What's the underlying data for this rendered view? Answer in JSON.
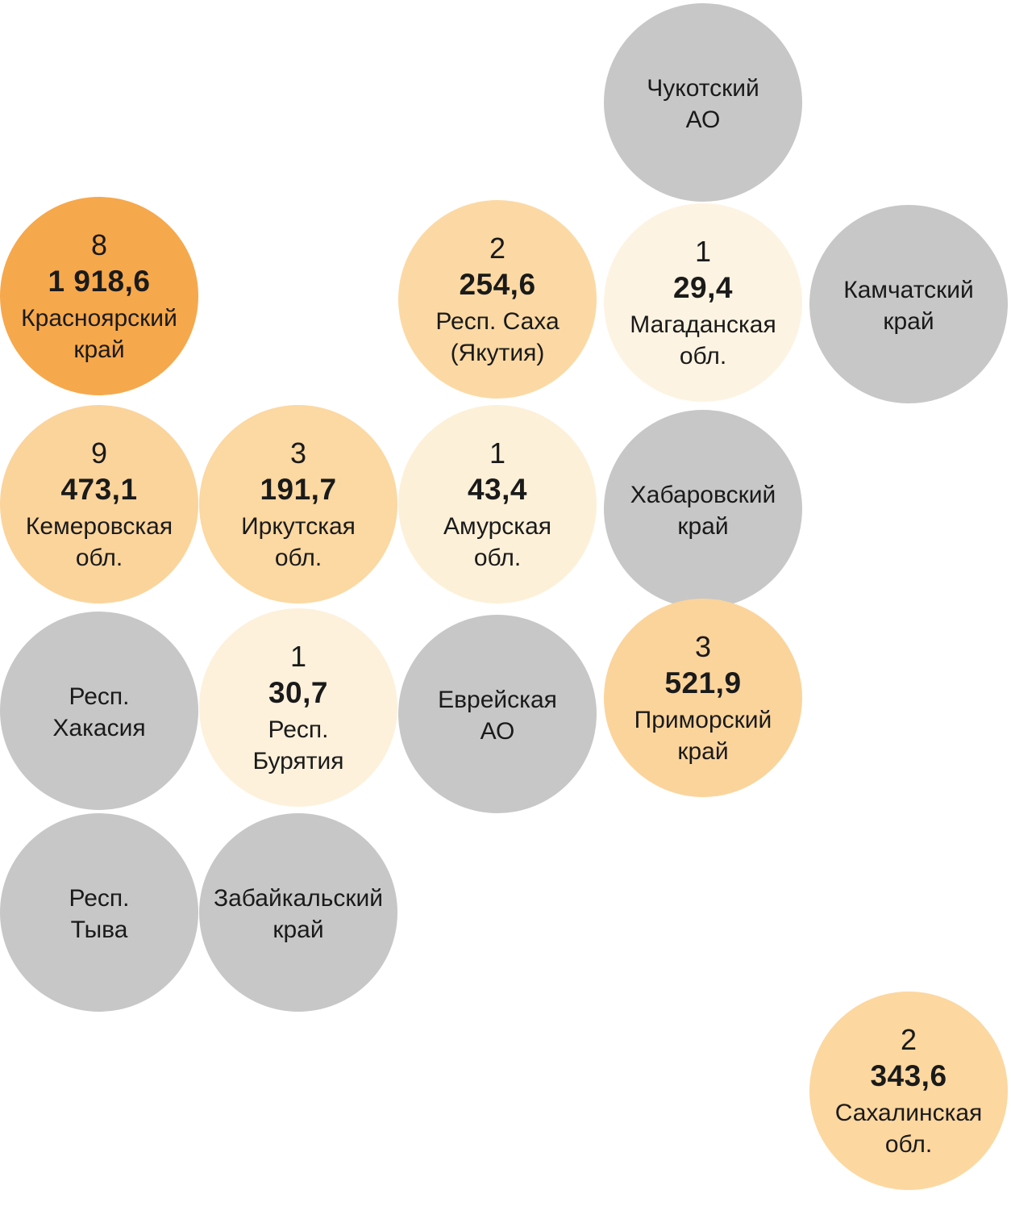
{
  "chart_data": {
    "type": "bubble-cartogram",
    "layout": "tile grid of equal-size circles representing Russian regions (Siberia and Far East)",
    "palette": {
      "no_data_gray": "#c7c7c7",
      "high_orange": "#f6a84c",
      "mid_orange": "#fbd6a0",
      "low_cream": "#fdf2dd",
      "text": "#1a1a1a",
      "background": "#ffffff"
    },
    "regions": [
      {
        "id": "chukotka",
        "name": "Чукотский\nАО",
        "count": null,
        "value": null,
        "value_num": null,
        "color": "#c7c7c7"
      },
      {
        "id": "krasnoyarsk",
        "name": "Красноярский\nкрай",
        "count": "8",
        "value": "1 918,6",
        "value_num": 1918.6,
        "color": "#f6a84c"
      },
      {
        "id": "sakha",
        "name": "Респ. Саха\n(Якутия)",
        "count": "2",
        "value": "254,6",
        "value_num": 254.6,
        "color": "#fcd9a4"
      },
      {
        "id": "magadan",
        "name": "Магаданская\nобл.",
        "count": "1",
        "value": "29,4",
        "value_num": 29.4,
        "color": "#fdf3e2"
      },
      {
        "id": "kamchatka",
        "name": "Камчатский\nкрай",
        "count": null,
        "value": null,
        "value_num": null,
        "color": "#c7c7c7"
      },
      {
        "id": "kemerovo",
        "name": "Кемеровская\nобл.",
        "count": "9",
        "value": "473,1",
        "value_num": 473.1,
        "color": "#fbd49c"
      },
      {
        "id": "irkutsk",
        "name": "Иркутская\nобл.",
        "count": "3",
        "value": "191,7",
        "value_num": 191.7,
        "color": "#fcd8a2"
      },
      {
        "id": "amur",
        "name": "Амурская\nобл.",
        "count": "1",
        "value": "43,4",
        "value_num": 43.4,
        "color": "#fdf0d8"
      },
      {
        "id": "khabarovsk",
        "name": "Хабаровский\nкрай",
        "count": null,
        "value": null,
        "value_num": null,
        "color": "#c7c7c7"
      },
      {
        "id": "khakassia",
        "name": "Респ.\nХакасия",
        "count": null,
        "value": null,
        "value_num": null,
        "color": "#c7c7c7"
      },
      {
        "id": "buryatia",
        "name": "Респ.\nБурятия",
        "count": "1",
        "value": "30,7",
        "value_num": 30.7,
        "color": "#fdf1dc"
      },
      {
        "id": "jewish",
        "name": "Еврейская\nАО",
        "count": null,
        "value": null,
        "value_num": null,
        "color": "#c7c7c7"
      },
      {
        "id": "primorsky",
        "name": "Приморский\nкрай",
        "count": "3",
        "value": "521,9",
        "value_num": 521.9,
        "color": "#fbd49c"
      },
      {
        "id": "tyva",
        "name": "Респ.\nТыва",
        "count": null,
        "value": null,
        "value_num": null,
        "color": "#c7c7c7"
      },
      {
        "id": "zabaykalsky",
        "name": "Забайкальский\nкрай",
        "count": null,
        "value": null,
        "value_num": null,
        "color": "#c7c7c7"
      },
      {
        "id": "sakhalin",
        "name": "Сахалинская\nобл.",
        "count": "2",
        "value": "343,6",
        "value_num": 343.6,
        "color": "#fcd7a0"
      }
    ]
  }
}
